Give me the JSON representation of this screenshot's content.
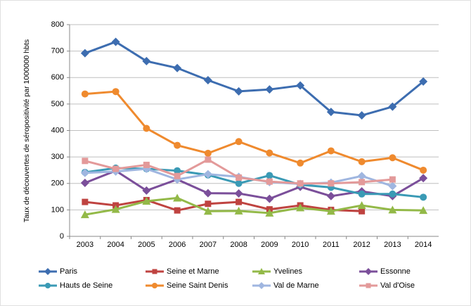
{
  "chart_data": {
    "type": "line",
    "y_label": "Taux de découvertes de séropositivité par 1000000 hbts",
    "categories": [
      "2003",
      "2004",
      "2005",
      "2006",
      "2007",
      "2008",
      "2009",
      "2010",
      "2011",
      "2012",
      "2013",
      "2014"
    ],
    "ylim": [
      0,
      800
    ],
    "yticks": [
      0,
      100,
      200,
      300,
      400,
      500,
      600,
      700,
      800
    ],
    "grid": true,
    "series": [
      {
        "name": "Paris",
        "color": "#3d6db0",
        "marker": "diamond",
        "values": [
          692,
          735,
          662,
          636,
          590,
          548,
          555,
          570,
          470,
          457,
          490,
          585
        ]
      },
      {
        "name": "Seine et Marne",
        "color": "#bf4340",
        "marker": "square",
        "values": [
          130,
          117,
          137,
          98,
          123,
          130,
          102,
          117,
          100,
          95,
          null,
          null
        ]
      },
      {
        "name": "Yvelines",
        "color": "#93b948",
        "marker": "triangle",
        "values": [
          82,
          102,
          133,
          145,
          95,
          96,
          88,
          108,
          95,
          117,
          100,
          98
        ]
      },
      {
        "name": "Essonne",
        "color": "#7b4f9a",
        "marker": "diamond",
        "values": [
          202,
          248,
          173,
          215,
          163,
          162,
          142,
          187,
          152,
          170,
          152,
          220
        ]
      },
      {
        "name": "Hauts de Seine",
        "color": "#3a9ab5",
        "marker": "circle",
        "values": [
          242,
          258,
          255,
          248,
          232,
          200,
          230,
          195,
          185,
          160,
          160,
          148
        ]
      },
      {
        "name": "Seine Saint Denis",
        "color": "#ef8a2e",
        "marker": "circle",
        "values": [
          538,
          547,
          408,
          344,
          314,
          358,
          315,
          277,
          323,
          282,
          297,
          250
        ]
      },
      {
        "name": "Val de Marne",
        "color": "#9fb6e0",
        "marker": "diamond",
        "values": [
          240,
          245,
          255,
          215,
          235,
          225,
          205,
          198,
          203,
          228,
          190,
          null
        ]
      },
      {
        "name": "Val d'Oise",
        "color": "#e39a9a",
        "marker": "square",
        "values": [
          285,
          255,
          270,
          228,
          290,
          222,
          207,
          200,
          200,
          205,
          215,
          null
        ]
      }
    ]
  }
}
